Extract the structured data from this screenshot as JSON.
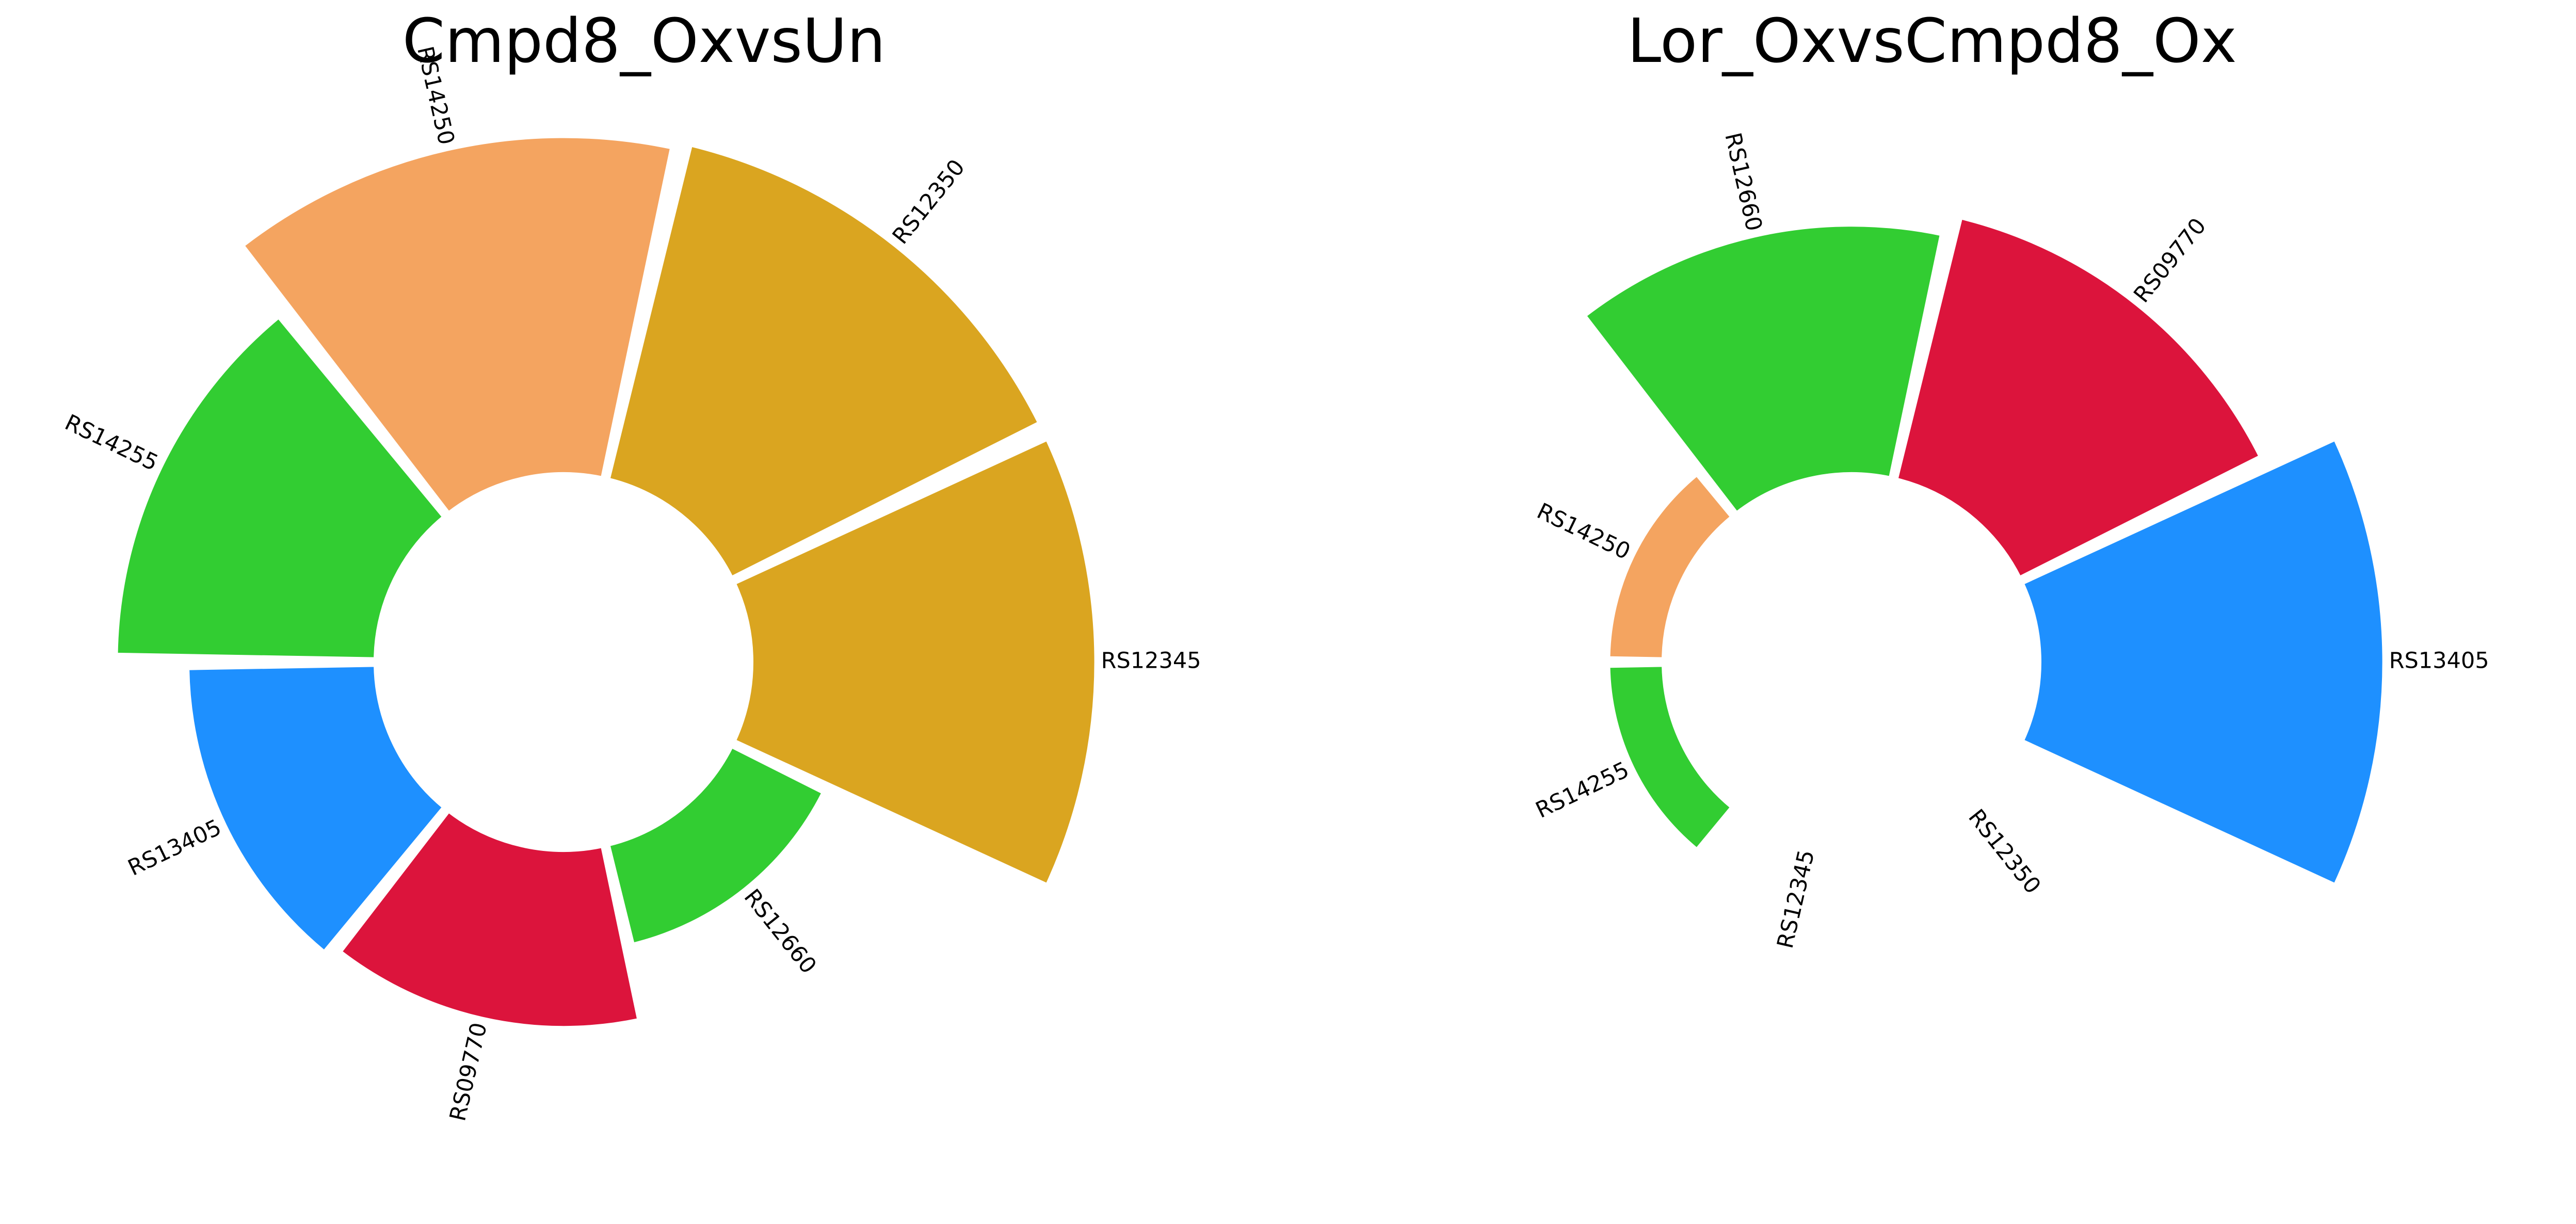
{
  "chart_data": [
    {
      "type": "radial_bar",
      "title": "Cmpd8_OxvsUn",
      "categories": [
        "RS12345",
        "RS12350",
        "RS14250",
        "RS14255",
        "RS13405",
        "RS09770",
        "RS12660"
      ],
      "values": [
        1.01,
        1.01,
        0.99,
        0.76,
        0.55,
        0.52,
        0.3
      ],
      "colors": [
        "#DAA520",
        "#DAA520",
        "#F4A460",
        "#32CD32",
        "#1E90FF",
        "#DC143C",
        "#32CD32"
      ],
      "angles_deg": [
        0,
        0,
        0,
        0,
        0,
        0,
        0
      ],
      "grid": false
    },
    {
      "type": "radial_bar",
      "title": "Lor_OxvsCmpd8_Ox",
      "categories": [
        "RS13405",
        "RS09770",
        "RS12660",
        "RS14250",
        "RS14255",
        "RS12345",
        "RS12350"
      ],
      "values": [
        1.01,
        0.79,
        0.73,
        0.16,
        0.16,
        0.0,
        0.0
      ],
      "colors": [
        "#1E90FF",
        "#DC143C",
        "#32CD32",
        "#F4A460",
        "#32CD32",
        "#DAA520",
        "#DAA520"
      ],
      "grid": false
    }
  ]
}
